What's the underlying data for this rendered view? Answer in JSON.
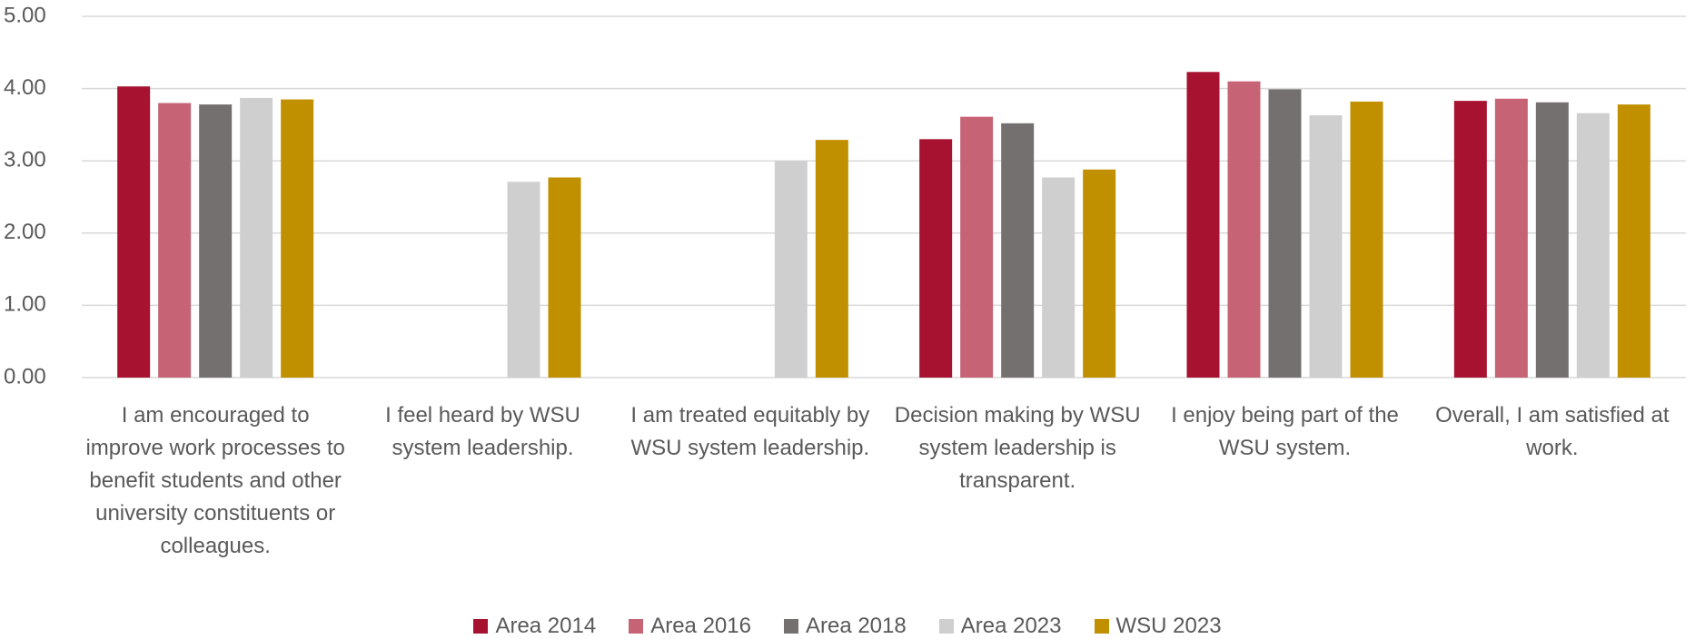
{
  "chart_data": {
    "type": "bar",
    "categories": [
      "I am encouraged to improve work processes to benefit students and other university constituents or colleagues.",
      "I feel heard by WSU system leadership.",
      "I am treated equitably by WSU system leadership.",
      "Decision making by WSU system leadership is transparent.",
      "I enjoy being part of the WSU system.",
      "Overall, I am satisfied at work."
    ],
    "series": [
      {
        "name": "Area 2014",
        "color": "#a6122f",
        "values": [
          4.03,
          null,
          null,
          3.3,
          4.23,
          3.83
        ]
      },
      {
        "name": "Area 2016",
        "color": "#c66375",
        "values": [
          3.8,
          null,
          null,
          3.61,
          4.1,
          3.86
        ]
      },
      {
        "name": "Area 2018",
        "color": "#757070",
        "values": [
          3.78,
          null,
          null,
          3.52,
          3.99,
          3.81
        ]
      },
      {
        "name": "Area 2023",
        "color": "#d0cfcf",
        "values": [
          3.87,
          2.71,
          3.0,
          2.77,
          3.63,
          3.66
        ]
      },
      {
        "name": "WSU 2023",
        "color": "#c09000",
        "values": [
          3.85,
          2.77,
          3.29,
          2.88,
          3.82,
          3.78
        ]
      }
    ],
    "ylim": [
      0,
      5
    ],
    "yticks": [
      {
        "value": 0,
        "label": "0.00"
      },
      {
        "value": 1,
        "label": "1.00"
      },
      {
        "value": 2,
        "label": "2.00"
      },
      {
        "value": 3,
        "label": "3.00"
      },
      {
        "value": 4,
        "label": "4.00"
      },
      {
        "value": 5,
        "label": "5.00"
      }
    ],
    "grid": true,
    "legend": "bottom"
  }
}
